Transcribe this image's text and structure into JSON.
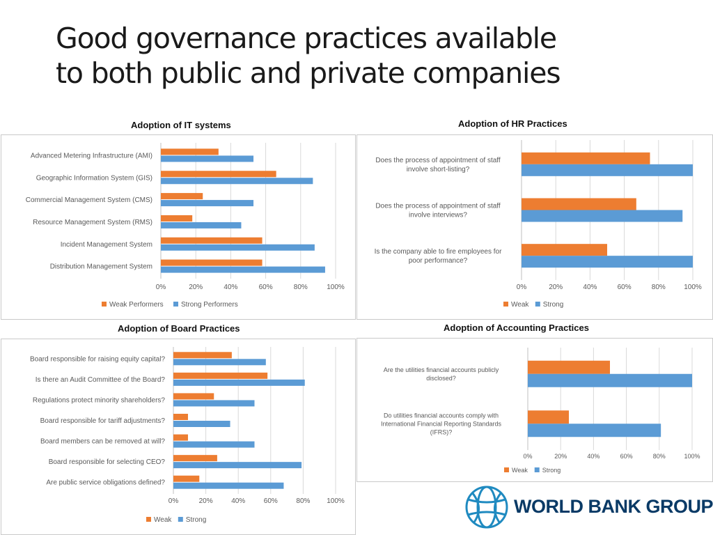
{
  "slide": {
    "title_line1": "Good governance practices available",
    "title_line2": "to both public and private companies"
  },
  "logo": {
    "text": "WORLD BANK GROUP",
    "icon": "globe-icon",
    "color": "#0a3a66"
  },
  "colors": {
    "weak": "#ed7d31",
    "strong": "#5b9bd5",
    "grid": "#d9d9d9",
    "text": "#595959"
  },
  "chart_data": [
    {
      "type": "bar",
      "orientation": "horizontal",
      "title": "Adoption of IT systems",
      "categories": [
        "Advanced Metering Infrastructure (AMI)",
        "Geographic Information System (GIS)",
        "Commercial Management System (CMS)",
        "Resource Management System (RMS)",
        "Incident Management System",
        "Distribution Management System"
      ],
      "series": [
        {
          "name": "Weak Performers",
          "values": [
            0.33,
            0.66,
            0.24,
            0.18,
            0.58,
            0.58
          ]
        },
        {
          "name": "Strong Performers",
          "values": [
            0.53,
            0.87,
            0.53,
            0.46,
            0.88,
            0.94
          ]
        }
      ],
      "xlim": [
        0,
        1
      ],
      "xticks": [
        "0%",
        "20%",
        "40%",
        "60%",
        "80%",
        "100%"
      ],
      "grid": true,
      "legend": "bottom"
    },
    {
      "type": "bar",
      "orientation": "horizontal",
      "title": "Adoption of HR Practices",
      "categories": [
        [
          "Does the process of appointment of staff",
          "involve short-listing?"
        ],
        [
          "Does the process of appointment of staff",
          "involve interviews?"
        ],
        [
          "Is the company able to fire employees for",
          "poor performance?"
        ]
      ],
      "series": [
        {
          "name": "Weak",
          "values": [
            0.75,
            0.67,
            0.5
          ]
        },
        {
          "name": "Strong",
          "values": [
            1.0,
            0.94,
            1.0
          ]
        }
      ],
      "xlim": [
        0,
        1
      ],
      "xticks": [
        "0%",
        "20%",
        "40%",
        "60%",
        "80%",
        "100%"
      ],
      "grid": true,
      "legend": "bottom"
    },
    {
      "type": "bar",
      "orientation": "horizontal",
      "title": "Adoption of Board Practices",
      "categories": [
        "Board responsible for raising equity capital?",
        "Is there an Audit Committee of the Board?",
        "Regulations protect minority shareholders?",
        "Board responsible for tariff adjustments?",
        "Board members can be removed at will?",
        "Board responsible for selecting CEO?",
        "Are public service obligations defined?"
      ],
      "series": [
        {
          "name": "Weak",
          "values": [
            0.36,
            0.58,
            0.25,
            0.09,
            0.09,
            0.27,
            0.16
          ]
        },
        {
          "name": "Strong",
          "values": [
            0.57,
            0.81,
            0.5,
            0.35,
            0.5,
            0.79,
            0.68
          ]
        }
      ],
      "xlim": [
        0,
        1
      ],
      "xticks": [
        "0%",
        "20%",
        "40%",
        "60%",
        "80%",
        "100%"
      ],
      "grid": true,
      "legend": "bottom"
    },
    {
      "type": "bar",
      "orientation": "horizontal",
      "title": "Adoption of Accounting Practices",
      "categories": [
        [
          "Are the utilities financial accounts publicly",
          "disclosed?"
        ],
        [
          "Do utilities financial accounts comply with",
          "International Financial Reporting Standards",
          "(IFRS)?"
        ]
      ],
      "series": [
        {
          "name": "Weak",
          "values": [
            0.5,
            0.25
          ]
        },
        {
          "name": "Strong",
          "values": [
            1.0,
            0.81
          ]
        }
      ],
      "xlim": [
        0,
        1
      ],
      "xticks": [
        "0%",
        "20%",
        "40%",
        "60%",
        "80%",
        "100%"
      ],
      "grid": true,
      "legend": "bottom"
    }
  ]
}
